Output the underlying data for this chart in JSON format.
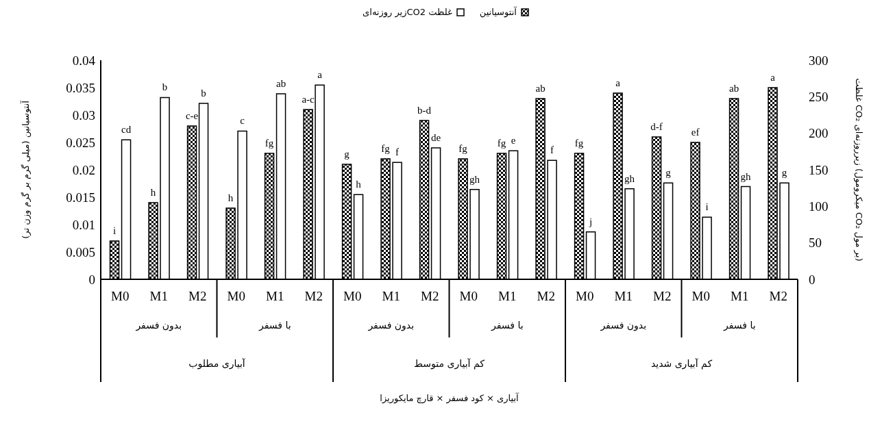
{
  "chart_data": {
    "type": "bar",
    "categories": [
      "M0",
      "M1",
      "M2",
      "M0",
      "M1",
      "M2",
      "M0",
      "M1",
      "M2",
      "M0",
      "M1",
      "M2",
      "M0",
      "M1",
      "M2",
      "M0",
      "M1",
      "M2"
    ],
    "series": [
      {
        "name": "آنتوسیانین",
        "color": "#000000",
        "values": [
          0.007,
          0.014,
          0.028,
          0.013,
          0.023,
          0.031,
          0.021,
          0.022,
          0.029,
          0.022,
          0.023,
          0.033,
          0.023,
          0.034,
          0.026,
          0.025,
          0.033,
          0.035
        ],
        "value_labels": [
          "i",
          "h",
          "c-e",
          "h",
          "fg",
          "a-c",
          "g",
          "fg",
          "b-d",
          "fg",
          "fg",
          "ab",
          "fg",
          "a",
          "d-f",
          "ef",
          "ab",
          "a"
        ]
      },
      {
        "name": "غلظت CO2زیر روزنه‌ای",
        "color": "#ffffff",
        "axis": "y2",
        "values": [
          191,
          249,
          241,
          203,
          254,
          266,
          116,
          160,
          180,
          123,
          176,
          163,
          65,
          124,
          132,
          85,
          127,
          132
        ],
        "value_labels": [
          "cd",
          "b",
          "b",
          "c",
          "ab",
          "a",
          "h",
          "f",
          "de",
          "gh",
          "e",
          "f",
          "j",
          "gh",
          "g",
          "i",
          "gh",
          "g"
        ]
      }
    ],
    "ylabel": "آنتوسیانین (میلی گرم بر گرم وزن تر)",
    "y2label": "غلظت CO₂ زیرروزنه‌ای (میکرومول CO₂ بر مول)",
    "ylim": [
      0,
      0.04
    ],
    "yticks": [
      0,
      0.005,
      0.01,
      0.015,
      0.02,
      0.025,
      0.03,
      0.035,
      0.04
    ],
    "y2lim": [
      0,
      300
    ],
    "y2ticks": [
      0,
      50,
      100,
      150,
      200,
      250,
      300
    ],
    "annotations": [
      "بدون فسفر",
      "با فسفر",
      "بدون فسفر",
      "با فسفر",
      "بدون فسفر",
      "با فسفر",
      "آبیاری مطلوب",
      "کم آبیاری متوسط",
      "کم آبیاری شدید",
      "آبیاری × کود فسفر  × قارچ مایکوریزا"
    ],
    "legend": "top",
    "grid": false
  }
}
